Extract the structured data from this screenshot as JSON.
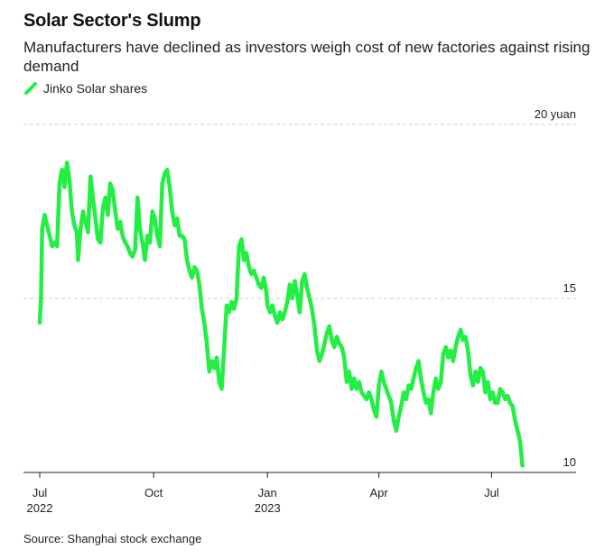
{
  "title": "Solar Sector's Slump",
  "subtitle": "Manufacturers have declined as investors weigh cost of new factories against rising demand",
  "source": "Source: Shanghai stock exchange",
  "colors": {
    "series": "#22ee44",
    "grid": "#d0d0d0",
    "axis": "#222222",
    "text": "#222222"
  },
  "chart_data": {
    "type": "line",
    "title": "Solar Sector's Slump",
    "ylim": [
      10,
      20
    ],
    "grid": true,
    "legend": "top-left",
    "y_ticks": [
      {
        "value": 20,
        "label": "20 yuan"
      },
      {
        "value": 15,
        "label": "15"
      },
      {
        "value": 10,
        "label": "10"
      }
    ],
    "x_range": [
      "2022-07-01",
      "2023-08-31"
    ],
    "x_ticks": [
      {
        "date": "2022-07-01",
        "label": "Jul",
        "sublabel": "2022"
      },
      {
        "date": "2022-10-01",
        "label": "Oct",
        "sublabel": ""
      },
      {
        "date": "2023-01-01",
        "label": "Jan",
        "sublabel": "2023"
      },
      {
        "date": "2023-04-01",
        "label": "Apr",
        "sublabel": ""
      },
      {
        "date": "2023-07-01",
        "label": "Jul",
        "sublabel": ""
      }
    ],
    "series": [
      {
        "name": "Jinko Solar shares",
        "color": "#22ee44",
        "points": [
          [
            "2022-07-01",
            14.3
          ],
          [
            "2022-07-02",
            15.0
          ],
          [
            "2022-07-03",
            17.0
          ],
          [
            "2022-07-05",
            17.4
          ],
          [
            "2022-07-07",
            17.1
          ],
          [
            "2022-07-09",
            16.8
          ],
          [
            "2022-07-11",
            16.5
          ],
          [
            "2022-07-13",
            16.6
          ],
          [
            "2022-07-15",
            16.5
          ],
          [
            "2022-07-17",
            18.3
          ],
          [
            "2022-07-19",
            18.7
          ],
          [
            "2022-07-21",
            18.2
          ],
          [
            "2022-07-23",
            18.9
          ],
          [
            "2022-07-25",
            18.4
          ],
          [
            "2022-07-27",
            17.5
          ],
          [
            "2022-07-29",
            17.1
          ],
          [
            "2022-07-31",
            16.9
          ],
          [
            "2022-08-01",
            16.1
          ],
          [
            "2022-08-03",
            17.0
          ],
          [
            "2022-08-05",
            17.5
          ],
          [
            "2022-08-07",
            17.2
          ],
          [
            "2022-08-09",
            16.9
          ],
          [
            "2022-08-11",
            18.5
          ],
          [
            "2022-08-13",
            17.9
          ],
          [
            "2022-08-15",
            17.3
          ],
          [
            "2022-08-17",
            16.7
          ],
          [
            "2022-08-19",
            16.6
          ],
          [
            "2022-08-21",
            17.6
          ],
          [
            "2022-08-23",
            17.9
          ],
          [
            "2022-08-25",
            17.4
          ],
          [
            "2022-08-27",
            18.3
          ],
          [
            "2022-08-29",
            18.1
          ],
          [
            "2022-08-31",
            17.5
          ],
          [
            "2022-09-02",
            17.0
          ],
          [
            "2022-09-04",
            17.2
          ],
          [
            "2022-09-06",
            16.8
          ],
          [
            "2022-09-08",
            16.6
          ],
          [
            "2022-09-10",
            16.5
          ],
          [
            "2022-09-12",
            16.3
          ],
          [
            "2022-09-14",
            16.2
          ],
          [
            "2022-09-16",
            16.4
          ],
          [
            "2022-09-18",
            17.9
          ],
          [
            "2022-09-20",
            17.0
          ],
          [
            "2022-09-22",
            16.6
          ],
          [
            "2022-09-24",
            16.1
          ],
          [
            "2022-09-26",
            16.8
          ],
          [
            "2022-09-28",
            16.6
          ],
          [
            "2022-09-30",
            17.5
          ],
          [
            "2022-10-02",
            17.3
          ],
          [
            "2022-10-04",
            16.8
          ],
          [
            "2022-10-06",
            16.5
          ],
          [
            "2022-10-08",
            18.3
          ],
          [
            "2022-10-10",
            18.6
          ],
          [
            "2022-10-12",
            18.7
          ],
          [
            "2022-10-14",
            18.2
          ],
          [
            "2022-10-16",
            17.5
          ],
          [
            "2022-10-18",
            17.1
          ],
          [
            "2022-10-20",
            17.3
          ],
          [
            "2022-10-22",
            16.8
          ],
          [
            "2022-10-24",
            16.8
          ],
          [
            "2022-10-26",
            16.7
          ],
          [
            "2022-10-28",
            16.1
          ],
          [
            "2022-10-30",
            15.8
          ],
          [
            "2022-11-01",
            15.6
          ],
          [
            "2022-11-03",
            15.9
          ],
          [
            "2022-11-05",
            15.8
          ],
          [
            "2022-11-07",
            15.4
          ],
          [
            "2022-11-09",
            14.7
          ],
          [
            "2022-11-11",
            14.3
          ],
          [
            "2022-11-13",
            13.7
          ],
          [
            "2022-11-15",
            12.9
          ],
          [
            "2022-11-17",
            13.2
          ],
          [
            "2022-11-19",
            13.0
          ],
          [
            "2022-11-21",
            13.3
          ],
          [
            "2022-11-23",
            12.6
          ],
          [
            "2022-11-25",
            12.4
          ],
          [
            "2022-11-27",
            13.6
          ],
          [
            "2022-11-29",
            14.8
          ],
          [
            "2022-12-01",
            14.6
          ],
          [
            "2022-12-03",
            14.9
          ],
          [
            "2022-12-05",
            14.7
          ],
          [
            "2022-12-07",
            15.0
          ],
          [
            "2022-12-09",
            16.5
          ],
          [
            "2022-12-11",
            16.7
          ],
          [
            "2022-12-13",
            16.1
          ],
          [
            "2022-12-15",
            16.3
          ],
          [
            "2022-12-17",
            15.9
          ],
          [
            "2022-12-19",
            15.7
          ],
          [
            "2022-12-21",
            15.8
          ],
          [
            "2022-12-23",
            15.6
          ],
          [
            "2022-12-25",
            15.4
          ],
          [
            "2022-12-27",
            15.3
          ],
          [
            "2022-12-29",
            15.6
          ],
          [
            "2022-12-31",
            15.2
          ],
          [
            "2023-01-01",
            14.8
          ]
        ]
      }
    ]
  },
  "extra_points": [
    [
      "2023-01-03",
      14.6
    ],
    [
      "2023-01-05",
      14.8
    ],
    [
      "2023-01-07",
      14.5
    ],
    [
      "2023-01-09",
      14.3
    ],
    [
      "2023-01-11",
      14.6
    ],
    [
      "2023-01-13",
      14.4
    ],
    [
      "2023-01-15",
      14.6
    ],
    [
      "2023-01-17",
      14.9
    ],
    [
      "2023-01-19",
      15.4
    ],
    [
      "2023-01-21",
      15.0
    ],
    [
      "2023-01-23",
      15.5
    ],
    [
      "2023-01-25",
      15.1
    ],
    [
      "2023-01-27",
      14.6
    ],
    [
      "2023-01-29",
      15.5
    ],
    [
      "2023-01-31",
      15.7
    ],
    [
      "2023-02-02",
      15.3
    ],
    [
      "2023-02-04",
      15.0
    ],
    [
      "2023-02-06",
      14.7
    ],
    [
      "2023-02-08",
      14.2
    ],
    [
      "2023-02-10",
      13.5
    ],
    [
      "2023-02-12",
      13.2
    ],
    [
      "2023-02-14",
      13.4
    ],
    [
      "2023-02-16",
      13.7
    ],
    [
      "2023-02-18",
      14.0
    ],
    [
      "2023-02-20",
      14.2
    ],
    [
      "2023-02-22",
      13.8
    ],
    [
      "2023-02-24",
      13.6
    ],
    [
      "2023-02-26",
      13.9
    ],
    [
      "2023-02-28",
      13.7
    ],
    [
      "2023-03-02",
      13.6
    ],
    [
      "2023-03-04",
      13.3
    ],
    [
      "2023-03-06",
      12.6
    ],
    [
      "2023-03-08",
      12.9
    ],
    [
      "2023-03-10",
      12.4
    ],
    [
      "2023-03-12",
      12.7
    ],
    [
      "2023-03-14",
      12.4
    ],
    [
      "2023-03-16",
      12.6
    ],
    [
      "2023-03-18",
      12.3
    ],
    [
      "2023-03-20",
      12.2
    ],
    [
      "2023-03-22",
      12.1
    ],
    [
      "2023-03-24",
      12.3
    ],
    [
      "2023-03-26",
      12.1
    ],
    [
      "2023-03-28",
      11.8
    ],
    [
      "2023-03-30",
      11.6
    ],
    [
      "2023-04-01",
      12.5
    ],
    [
      "2023-04-03",
      12.9
    ],
    [
      "2023-04-05",
      12.6
    ],
    [
      "2023-04-07",
      12.4
    ],
    [
      "2023-04-09",
      12.2
    ],
    [
      "2023-04-11",
      12.0
    ],
    [
      "2023-04-13",
      11.5
    ],
    [
      "2023-04-15",
      11.2
    ],
    [
      "2023-04-17",
      11.6
    ],
    [
      "2023-04-19",
      11.9
    ],
    [
      "2023-04-21",
      12.3
    ],
    [
      "2023-04-23",
      12.1
    ],
    [
      "2023-04-25",
      12.5
    ],
    [
      "2023-04-27",
      12.4
    ],
    [
      "2023-04-29",
      12.7
    ],
    [
      "2023-05-01",
      13.0
    ],
    [
      "2023-05-03",
      13.2
    ],
    [
      "2023-05-05",
      12.7
    ],
    [
      "2023-05-07",
      12.3
    ],
    [
      "2023-05-09",
      12.0
    ],
    [
      "2023-05-11",
      12.1
    ],
    [
      "2023-05-13",
      11.7
    ],
    [
      "2023-05-15",
      12.3
    ],
    [
      "2023-05-17",
      12.7
    ],
    [
      "2023-05-19",
      12.4
    ],
    [
      "2023-05-21",
      12.6
    ],
    [
      "2023-05-23",
      13.4
    ],
    [
      "2023-05-25",
      13.6
    ],
    [
      "2023-05-27",
      13.3
    ],
    [
      "2023-05-29",
      13.5
    ],
    [
      "2023-05-31",
      13.2
    ],
    [
      "2023-06-02",
      13.6
    ],
    [
      "2023-06-04",
      13.9
    ],
    [
      "2023-06-06",
      14.1
    ],
    [
      "2023-06-08",
      13.8
    ],
    [
      "2023-06-10",
      13.9
    ],
    [
      "2023-06-12",
      13.5
    ],
    [
      "2023-06-14",
      12.8
    ],
    [
      "2023-06-16",
      12.5
    ],
    [
      "2023-06-18",
      12.9
    ],
    [
      "2023-06-20",
      12.6
    ],
    [
      "2023-06-22",
      13.0
    ],
    [
      "2023-06-24",
      12.9
    ],
    [
      "2023-06-26",
      12.3
    ],
    [
      "2023-06-28",
      12.6
    ],
    [
      "2023-06-30",
      12.1
    ],
    [
      "2023-07-02",
      12.3
    ],
    [
      "2023-07-04",
      12.0
    ],
    [
      "2023-07-06",
      12.0
    ],
    [
      "2023-07-08",
      12.4
    ],
    [
      "2023-07-10",
      12.3
    ],
    [
      "2023-07-12",
      12.1
    ],
    [
      "2023-07-14",
      12.2
    ],
    [
      "2023-07-16",
      12.0
    ],
    [
      "2023-07-18",
      11.9
    ],
    [
      "2023-07-20",
      11.5
    ],
    [
      "2023-07-22",
      11.2
    ],
    [
      "2023-07-24",
      10.9
    ],
    [
      "2023-07-26",
      10.2
    ]
  ]
}
